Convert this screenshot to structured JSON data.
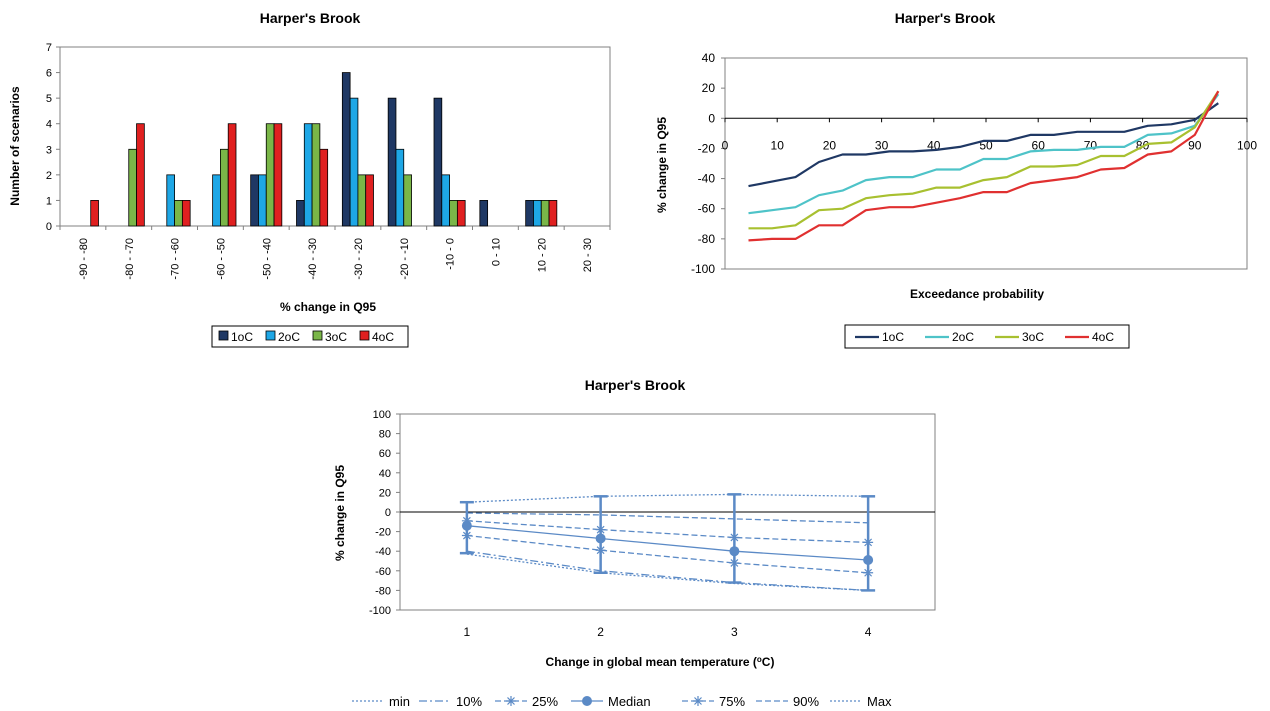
{
  "chart_data": [
    {
      "type": "bar",
      "title": "Harper's Brook",
      "xlabel": "% change in Q95",
      "ylabel": "Number of scenarios",
      "ylim": [
        0,
        7
      ],
      "yticks": [
        "0",
        "1",
        "2",
        "3",
        "4",
        "5",
        "6",
        "7"
      ],
      "categories": [
        "-90 - -80",
        "-80 - -70",
        "-70 - -60",
        "-60 - -50",
        "-50 - -40",
        "-40 - -30",
        "-30 - -20",
        "-20 - -10",
        "-10 - 0",
        "0 - 10",
        "10 - 20",
        "20 - 30"
      ],
      "series": [
        {
          "name": "1oC",
          "color": "#1f3864",
          "values": [
            0,
            0,
            0,
            0,
            2,
            1,
            6,
            5,
            5,
            1,
            1,
            0
          ]
        },
        {
          "name": "2oC",
          "color": "#1ea7e6",
          "values": [
            0,
            0,
            2,
            2,
            2,
            4,
            5,
            3,
            2,
            0,
            1,
            0
          ]
        },
        {
          "name": "3oC",
          "color": "#7ab648",
          "values": [
            0,
            3,
            1,
            3,
            4,
            4,
            2,
            2,
            1,
            0,
            1,
            0
          ]
        },
        {
          "name": "4oC",
          "color": "#e02020",
          "values": [
            1,
            4,
            1,
            4,
            4,
            3,
            2,
            0,
            1,
            0,
            1,
            0
          ]
        }
      ],
      "legend": "bottom",
      "grid": false
    },
    {
      "type": "line",
      "title": "Harper's Brook",
      "xlabel": "Exceedance probability",
      "ylabel": "% change in Q95",
      "xlim": [
        0,
        100
      ],
      "ylim": [
        -100,
        40
      ],
      "xticks": [
        "0",
        "10",
        "20",
        "30",
        "40",
        "50",
        "60",
        "70",
        "80",
        "90",
        "100"
      ],
      "yticks": [
        "-100",
        "-80",
        "-60",
        "-40",
        "-20",
        "0",
        "20",
        "40"
      ],
      "x": [
        4.5,
        9,
        13.5,
        18,
        22.5,
        27,
        31.5,
        36,
        40.5,
        45,
        49.5,
        54,
        58.5,
        63,
        67.5,
        72,
        76.5,
        81,
        85.5,
        90,
        94.5
      ],
      "series": [
        {
          "name": "1oC",
          "color": "#1f3864",
          "values": [
            -45,
            -42,
            -39,
            -29,
            -24,
            -24,
            -22,
            -22,
            -21,
            -19,
            -15,
            -15,
            -11,
            -11,
            -9,
            -9,
            -9,
            -5,
            -4,
            -1,
            10
          ]
        },
        {
          "name": "2oC",
          "color": "#4ec3c8",
          "values": [
            -63,
            -61,
            -59,
            -51,
            -48,
            -41,
            -39,
            -39,
            -34,
            -34,
            -27,
            -27,
            -22,
            -21,
            -21,
            -19,
            -19,
            -11,
            -10,
            -5,
            16
          ]
        },
        {
          "name": "3oC",
          "color": "#a8c030",
          "values": [
            -73,
            -73,
            -71,
            -61,
            -60,
            -53,
            -51,
            -50,
            -46,
            -46,
            -41,
            -39,
            -32,
            -32,
            -31,
            -25,
            -25,
            -17,
            -16,
            -6,
            18
          ]
        },
        {
          "name": "4oC",
          "color": "#e03030",
          "values": [
            -81,
            -80,
            -80,
            -71,
            -71,
            -61,
            -59,
            -59,
            -56,
            -53,
            -49,
            -49,
            -43,
            -41,
            -39,
            -34,
            -33,
            -24,
            -22,
            -11,
            18
          ]
        }
      ],
      "legend": "bottom",
      "grid": false
    },
    {
      "type": "line",
      "title": "Harper's Brook",
      "xlabel": "Change in global mean temperature (oC)",
      "ylabel": "% change in Q95",
      "categories": [
        "1",
        "2",
        "3",
        "4"
      ],
      "ylim": [
        -100,
        100
      ],
      "yticks": [
        "-100",
        "-80",
        "-60",
        "-40",
        "-20",
        "0",
        "20",
        "40",
        "60",
        "80",
        "100"
      ],
      "color": "#5b8ac6",
      "series": [
        {
          "name": "min",
          "style": "dotted",
          "values": [
            -43,
            -62,
            -73,
            -80
          ]
        },
        {
          "name": "10%",
          "style": "dashdot",
          "values": [
            -40,
            -60,
            -72,
            -80
          ]
        },
        {
          "name": "25%",
          "style": "dashed",
          "marker": "star",
          "values": [
            -24,
            -39,
            -52,
            -62
          ]
        },
        {
          "name": "Median",
          "style": "solid",
          "marker": "circle",
          "values": [
            -14,
            -27,
            -40,
            -49
          ]
        },
        {
          "name": "75%",
          "style": "dashed",
          "marker": "star",
          "values": [
            -9,
            -18,
            -26,
            -31
          ]
        },
        {
          "name": "90%",
          "style": "dashed",
          "values": [
            -1,
            -3,
            -7,
            -11
          ]
        },
        {
          "name": "Max",
          "style": "dotted",
          "values": [
            10,
            16,
            18,
            16
          ]
        }
      ],
      "error_bars": {
        "low": [
          -42,
          -62,
          -72,
          -80
        ],
        "high": [
          10,
          16,
          18,
          16
        ]
      },
      "legend": "bottom",
      "grid": false
    }
  ]
}
